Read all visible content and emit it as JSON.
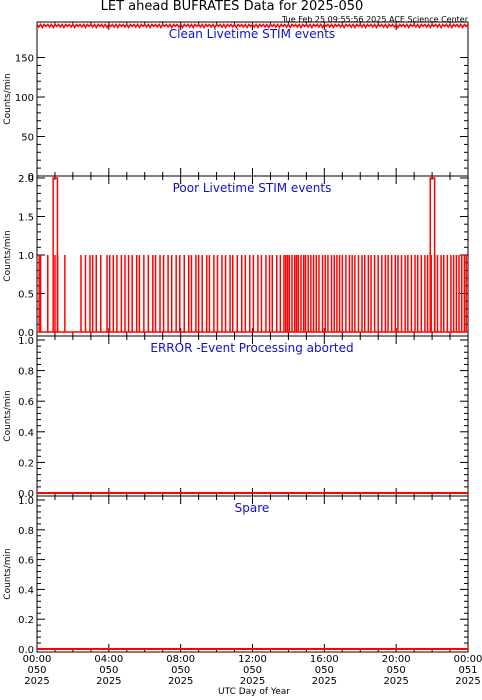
{
  "title": "LET ahead BUFRATES Data for 2025-050",
  "timestamp": "Tue Feb 25 09:55:56 2025 ACE Science Center",
  "xlabel": "UTC Day of Year",
  "x_ticks": [
    {
      "line1": "00:00",
      "line2": "050",
      "line3": "2025"
    },
    {
      "line1": "04:00",
      "line2": "050",
      "line3": "2025"
    },
    {
      "line1": "08:00",
      "line2": "050",
      "line3": "2025"
    },
    {
      "line1": "12:00",
      "line2": "050",
      "line3": "2025"
    },
    {
      "line1": "16:00",
      "line2": "050",
      "line3": "2025"
    },
    {
      "line1": "20:00",
      "line2": "050",
      "line3": "2025"
    },
    {
      "line1": "00:00",
      "line2": "051",
      "line3": "2025"
    }
  ],
  "colors": {
    "data": "#ff0000",
    "panel_title": "#1010cc",
    "axis": "#000000"
  },
  "chart_data": [
    {
      "type": "line",
      "title": "Clean Livetime STIM events",
      "ylabel": "Counts/min",
      "xlim": [
        0,
        24
      ],
      "ylim": [
        0,
        195
      ],
      "yticks": [
        0,
        50,
        100,
        150
      ],
      "ytick_labels": [
        "0",
        "50",
        "100",
        "150"
      ],
      "x_hours": [
        0,
        24
      ],
      "y_base": 190,
      "y_jitter": [
        188,
        192
      ]
    },
    {
      "type": "line",
      "title": "Poor Livetime STIM events",
      "ylabel": "Counts/min",
      "xlim": [
        0,
        24
      ],
      "ylim": [
        0,
        2
      ],
      "yticks": [
        0.0,
        0.5,
        1.0,
        1.5,
        2.0
      ],
      "ytick_labels": [
        "0.0",
        "0.5",
        "1.0",
        "1.5",
        "2.0"
      ],
      "spikes_to_2": [
        1.02,
        22.02
      ],
      "spikes_to_1": [
        0.12,
        0.2,
        0.6,
        1.0,
        1.15,
        1.55,
        2.45,
        2.7,
        2.95,
        3.1,
        3.3,
        3.55,
        3.9,
        4.05,
        4.25,
        4.45,
        4.7,
        4.9,
        5.1,
        5.3,
        5.55,
        5.7,
        5.95,
        6.2,
        6.45,
        6.6,
        6.85,
        7.05,
        7.3,
        7.5,
        7.75,
        7.95,
        8.2,
        8.45,
        8.6,
        8.85,
        9.0,
        9.2,
        9.45,
        9.6,
        9.85,
        10.05,
        10.3,
        10.5,
        10.75,
        10.9,
        11.15,
        11.4,
        11.6,
        11.85,
        12.05,
        12.3,
        12.5,
        12.75,
        12.95,
        13.1,
        13.35,
        13.55,
        13.75,
        13.85,
        13.95,
        14.05,
        14.2,
        14.35,
        14.45,
        14.55,
        14.7,
        14.85,
        14.95,
        15.1,
        15.25,
        15.4,
        15.55,
        15.7,
        15.9,
        16.05,
        16.2,
        16.4,
        16.55,
        16.7,
        16.85,
        17.0,
        17.2,
        17.4,
        17.55,
        17.7,
        17.9,
        18.1,
        18.25,
        18.45,
        18.6,
        18.8,
        19.0,
        19.2,
        19.4,
        19.55,
        19.75,
        19.95,
        20.1,
        20.3,
        20.5,
        20.65,
        20.85,
        21.05,
        21.2,
        21.4,
        21.6,
        21.75,
        21.95,
        22.15,
        22.3,
        22.5,
        22.65,
        22.85,
        23.05,
        23.2,
        23.35,
        23.5,
        23.65,
        23.8,
        23.9
      ]
    },
    {
      "type": "line",
      "title": "ERROR -Event Processing aborted",
      "ylabel": "Counts/min",
      "xlim": [
        0,
        24
      ],
      "ylim": [
        0,
        1
      ],
      "yticks": [
        0.0,
        0.2,
        0.4,
        0.6,
        0.8,
        1.0
      ],
      "ytick_labels": [
        "0.0",
        "0.2",
        "0.4",
        "0.6",
        "0.8",
        "1.0"
      ],
      "x_hours": [
        0,
        24
      ],
      "y_values": [
        0,
        0
      ]
    },
    {
      "type": "line",
      "title": "Spare",
      "ylabel": "Counts/min",
      "xlim": [
        0,
        24
      ],
      "ylim": [
        0,
        1
      ],
      "yticks": [
        0.0,
        0.2,
        0.4,
        0.6,
        0.8,
        1.0
      ],
      "ytick_labels": [
        "0.0",
        "0.2",
        "0.4",
        "0.6",
        "0.8",
        "1.0"
      ],
      "x_hours": [
        0,
        24
      ],
      "y_values": [
        0,
        0
      ]
    }
  ]
}
